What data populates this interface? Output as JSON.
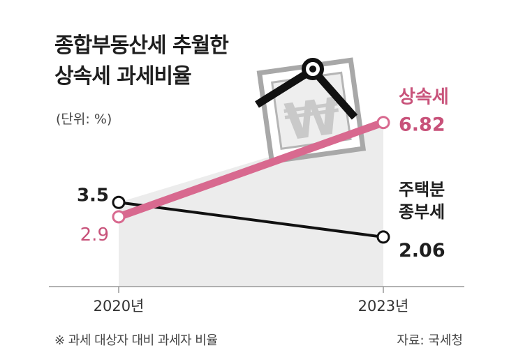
{
  "header": {
    "title_line1": "종합부동산세 추월한",
    "title_line2": "상속세 과세비율",
    "unit": "(단위: %)"
  },
  "footer": {
    "note": "※ 과세 대상자 대비 과세자 비율",
    "source": "자료: 국세청"
  },
  "colors": {
    "inheritance": "#d8698f",
    "property": "#111111",
    "area": "#ececec"
  },
  "illustration": {
    "icon": "won-sign-sign-icon",
    "symbol": "₩"
  },
  "chart_data": {
    "type": "line",
    "title": "종합부동산세 추월한 상속세 과세비율",
    "unit": "(단위: %)",
    "x": [
      "2020년",
      "2023년"
    ],
    "ylim": [
      0,
      8
    ],
    "grid": false,
    "series": [
      {
        "name": "상속세",
        "values": [
          2.9,
          6.82
        ],
        "labels": [
          "2.9",
          "6.82"
        ]
      },
      {
        "name": "주택분 종부세",
        "name_lines": [
          "주택분",
          "종부세"
        ],
        "values": [
          3.5,
          2.06
        ],
        "labels": [
          "3.5",
          "2.06"
        ]
      }
    ]
  }
}
